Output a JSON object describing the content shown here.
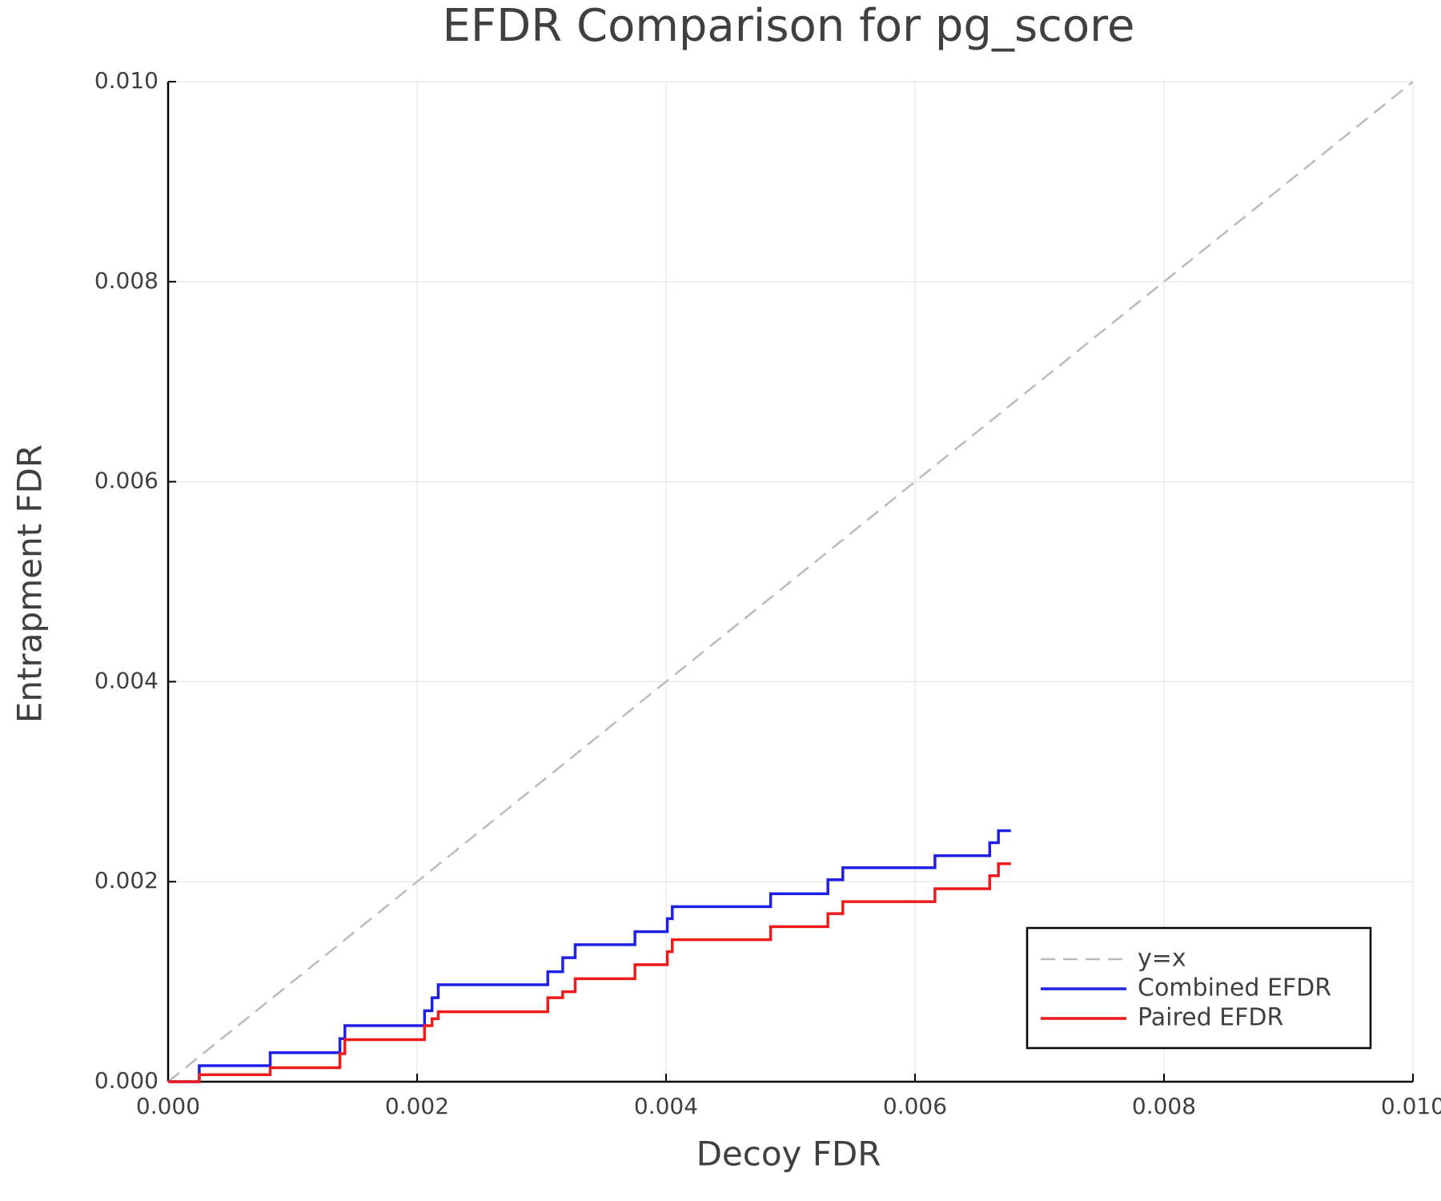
{
  "chart_data": {
    "type": "line",
    "title": "EFDR Comparison for pg_score",
    "x_label": "Decoy FDR",
    "y_label": "Entrapment FDR",
    "xlim": [
      0,
      0.01
    ],
    "ylim": [
      0,
      0.01
    ],
    "xticks": [
      {
        "value": 0,
        "label": "0.000"
      },
      {
        "value": 0.002,
        "label": "0.002"
      },
      {
        "value": 0.004,
        "label": "0.004"
      },
      {
        "value": 0.006,
        "label": "0.006"
      },
      {
        "value": 0.008,
        "label": "0.008"
      },
      {
        "value": 0.01,
        "label": "0.010"
      }
    ],
    "yticks": [
      {
        "value": 0,
        "label": "0.000"
      },
      {
        "value": 0.002,
        "label": "0.002"
      },
      {
        "value": 0.004,
        "label": "0.004"
      },
      {
        "value": 0.006,
        "label": "0.006"
      },
      {
        "value": 0.008,
        "label": "0.008"
      },
      {
        "value": 0.01,
        "label": "0.010"
      }
    ],
    "grid": true,
    "legend": "lower right",
    "series": [
      {
        "name": "y=x",
        "color": "#bbbbbb",
        "dash": true,
        "step": false,
        "x": [
          0,
          0.01
        ],
        "values": [
          0,
          0.01
        ]
      },
      {
        "name": "Combined EFDR",
        "color": "#1f1fe6",
        "dash": false,
        "step": true,
        "x": [
          0,
          0.00025,
          0.00082,
          0.00138,
          0.00142,
          0.00206,
          0.00212,
          0.00217,
          0.00305,
          0.00317,
          0.00327,
          0.00375,
          0.00401,
          0.00405,
          0.00484,
          0.0053,
          0.00542,
          0.00616,
          0.0066,
          0.00667,
          0.00677
        ],
        "values": [
          0,
          0.00016,
          0.00029,
          0.00043,
          0.00056,
          0.00071,
          0.00084,
          0.00097,
          0.0011,
          0.00124,
          0.00137,
          0.0015,
          0.00163,
          0.00175,
          0.00188,
          0.00202,
          0.00214,
          0.00226,
          0.00239,
          0.00251,
          0.00251
        ]
      },
      {
        "name": "Paired EFDR",
        "color": "#f01a1a",
        "dash": false,
        "step": true,
        "x": [
          0,
          0.00025,
          0.00082,
          0.00138,
          0.00142,
          0.00206,
          0.00212,
          0.00217,
          0.00305,
          0.00317,
          0.00327,
          0.00375,
          0.00401,
          0.00405,
          0.00484,
          0.0053,
          0.00542,
          0.00616,
          0.0066,
          0.00667,
          0.00677
        ],
        "values": [
          0,
          7e-05,
          0.00014,
          0.00028,
          0.00042,
          0.00056,
          0.00063,
          0.0007,
          0.00084,
          0.0009,
          0.00103,
          0.00117,
          0.0013,
          0.00142,
          0.00155,
          0.00168,
          0.0018,
          0.00193,
          0.00206,
          0.00218,
          0.00218
        ]
      }
    ]
  }
}
